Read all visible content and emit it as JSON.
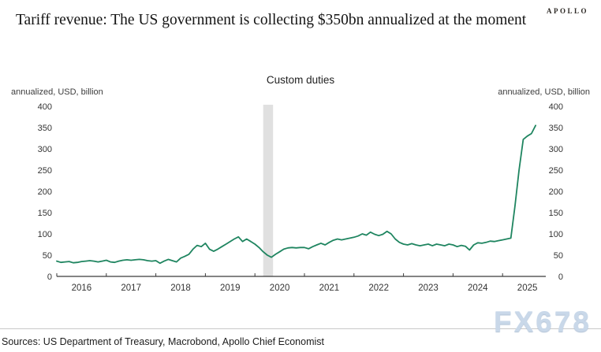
{
  "header": {
    "brand": "APOLLO",
    "title": "Tariff revenue: The US government is collecting $350bn annualized at the moment"
  },
  "footer": {
    "sources": "Sources: US Department of Treasury, Macrobond, Apollo Chief Economist"
  },
  "watermark": {
    "text": "FX678"
  },
  "chart_data": {
    "type": "line",
    "title": "Custom duties",
    "ylabel_left": "annualized, USD, billion",
    "ylabel_right": "annualized, USD, billion",
    "ylim": [
      0,
      400
    ],
    "yticks": [
      0,
      50,
      100,
      150,
      200,
      250,
      300,
      350,
      400
    ],
    "x_years": [
      2016,
      2017,
      2018,
      2019,
      2020,
      2021,
      2022,
      2023,
      2024,
      2025
    ],
    "x_start": "2016-01",
    "x_end": "2025-09",
    "frequency": "monthly",
    "grid": false,
    "legend": "none",
    "recession_band": {
      "from": "2020-03",
      "to": "2020-05",
      "color": "#e0e0e0"
    },
    "axis_color": "#3a3a3a",
    "series": [
      {
        "name": "Custom duties",
        "color": "#1f8560",
        "values": [
          36,
          33,
          34,
          35,
          32,
          33,
          35,
          36,
          37,
          36,
          34,
          36,
          38,
          34,
          33,
          36,
          38,
          39,
          38,
          39,
          40,
          39,
          37,
          36,
          37,
          31,
          36,
          40,
          37,
          34,
          43,
          47,
          52,
          64,
          73,
          70,
          78,
          64,
          59,
          64,
          70,
          76,
          82,
          88,
          93,
          82,
          88,
          82,
          76,
          68,
          58,
          50,
          45,
          52,
          58,
          64,
          67,
          68,
          67,
          68,
          68,
          65,
          70,
          74,
          78,
          74,
          80,
          85,
          88,
          86,
          88,
          90,
          92,
          95,
          100,
          97,
          104,
          99,
          96,
          99,
          106,
          100,
          88,
          80,
          76,
          74,
          77,
          74,
          72,
          74,
          76,
          72,
          76,
          74,
          72,
          76,
          74,
          70,
          73,
          71,
          62,
          74,
          79,
          78,
          80,
          83,
          82,
          84,
          86,
          88,
          90,
          165,
          250,
          322,
          330,
          336,
          355
        ]
      }
    ]
  }
}
